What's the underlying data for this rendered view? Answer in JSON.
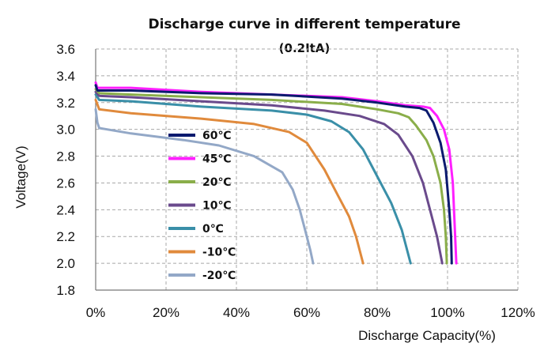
{
  "chart_data": {
    "type": "line",
    "title": "Discharge curve in different temperature",
    "subtitle": "(0.2ItA)",
    "xlabel": "Discharge Capacity(%)",
    "ylabel": "Voltage(V)",
    "xlim": [
      0,
      120
    ],
    "ylim": [
      1.8,
      3.6
    ],
    "x_ticks": [
      0,
      20,
      40,
      60,
      80,
      100,
      120
    ],
    "x_tick_labels": [
      "0%",
      "20%",
      "40%",
      "60%",
      "80%",
      "100%",
      "120%"
    ],
    "y_ticks": [
      1.8,
      2.0,
      2.2,
      2.4,
      2.6,
      2.8,
      3.0,
      3.2,
      3.4,
      3.6
    ],
    "y_tick_labels": [
      "1.8",
      "2.0",
      "2.2",
      "2.4",
      "2.6",
      "2.8",
      "3.0",
      "3.2",
      "3.4",
      "3.6"
    ],
    "grid": "dashed",
    "legend_position": "inside-left",
    "series": [
      {
        "name": "60℃",
        "color": "#0a1a6e",
        "points": [
          [
            0,
            3.33
          ],
          [
            0.5,
            3.29
          ],
          [
            1,
            3.29
          ],
          [
            10,
            3.29
          ],
          [
            30,
            3.27
          ],
          [
            50,
            3.26
          ],
          [
            70,
            3.23
          ],
          [
            80,
            3.2
          ],
          [
            88,
            3.17
          ],
          [
            92,
            3.16
          ],
          [
            94,
            3.14
          ],
          [
            96,
            3.05
          ],
          [
            98,
            2.9
          ],
          [
            99.5,
            2.7
          ],
          [
            100.5,
            2.4
          ],
          [
            101,
            2.2
          ],
          [
            101.2,
            2.0
          ]
        ]
      },
      {
        "name": "45℃",
        "color": "#ff1fff",
        "points": [
          [
            0,
            3.35
          ],
          [
            0.5,
            3.31
          ],
          [
            1,
            3.31
          ],
          [
            10,
            3.31
          ],
          [
            30,
            3.28
          ],
          [
            50,
            3.26
          ],
          [
            70,
            3.24
          ],
          [
            80,
            3.21
          ],
          [
            88,
            3.18
          ],
          [
            93,
            3.17
          ],
          [
            95,
            3.16
          ],
          [
            97,
            3.1
          ],
          [
            99,
            3.0
          ],
          [
            100.5,
            2.85
          ],
          [
            101.5,
            2.6
          ],
          [
            102,
            2.3
          ],
          [
            102.5,
            2.0
          ]
        ]
      },
      {
        "name": "20℃",
        "color": "#8aae4a",
        "points": [
          [
            0,
            3.3
          ],
          [
            1,
            3.27
          ],
          [
            10,
            3.26
          ],
          [
            30,
            3.24
          ],
          [
            50,
            3.22
          ],
          [
            70,
            3.19
          ],
          [
            80,
            3.15
          ],
          [
            86,
            3.12
          ],
          [
            89,
            3.09
          ],
          [
            91,
            3.03
          ],
          [
            94,
            2.92
          ],
          [
            96,
            2.8
          ],
          [
            98,
            2.6
          ],
          [
            99,
            2.4
          ],
          [
            99.5,
            2.2
          ],
          [
            99.8,
            2.0
          ]
        ]
      },
      {
        "name": "10℃",
        "color": "#6a4a8c",
        "points": [
          [
            0,
            3.28
          ],
          [
            1,
            3.25
          ],
          [
            10,
            3.24
          ],
          [
            30,
            3.21
          ],
          [
            50,
            3.18
          ],
          [
            65,
            3.14
          ],
          [
            75,
            3.1
          ],
          [
            82,
            3.04
          ],
          [
            86,
            2.96
          ],
          [
            90,
            2.8
          ],
          [
            93,
            2.6
          ],
          [
            95,
            2.4
          ],
          [
            97,
            2.2
          ],
          [
            98.5,
            2.0
          ]
        ]
      },
      {
        "name": "0℃",
        "color": "#3a8fa8",
        "points": [
          [
            0,
            3.26
          ],
          [
            1,
            3.22
          ],
          [
            10,
            3.21
          ],
          [
            30,
            3.17
          ],
          [
            50,
            3.14
          ],
          [
            60,
            3.11
          ],
          [
            67,
            3.06
          ],
          [
            72,
            2.98
          ],
          [
            76,
            2.85
          ],
          [
            80,
            2.65
          ],
          [
            84,
            2.45
          ],
          [
            87,
            2.25
          ],
          [
            89.5,
            2.0
          ]
        ]
      },
      {
        "name": "-10℃",
        "color": "#e08a3c",
        "points": [
          [
            0,
            3.22
          ],
          [
            1,
            3.15
          ],
          [
            10,
            3.12
          ],
          [
            30,
            3.08
          ],
          [
            45,
            3.04
          ],
          [
            55,
            2.98
          ],
          [
            60,
            2.9
          ],
          [
            65,
            2.7
          ],
          [
            69,
            2.5
          ],
          [
            72,
            2.35
          ],
          [
            74,
            2.2
          ],
          [
            76,
            2.0
          ]
        ]
      },
      {
        "name": "-20℃",
        "color": "#93a8c7",
        "points": [
          [
            0,
            3.15
          ],
          [
            0.5,
            3.05
          ],
          [
            1,
            3.01
          ],
          [
            10,
            2.97
          ],
          [
            25,
            2.92
          ],
          [
            35,
            2.88
          ],
          [
            45,
            2.8
          ],
          [
            53,
            2.68
          ],
          [
            56,
            2.55
          ],
          [
            58,
            2.4
          ],
          [
            59.5,
            2.25
          ],
          [
            61,
            2.1
          ],
          [
            61.8,
            2.0
          ]
        ]
      }
    ]
  }
}
